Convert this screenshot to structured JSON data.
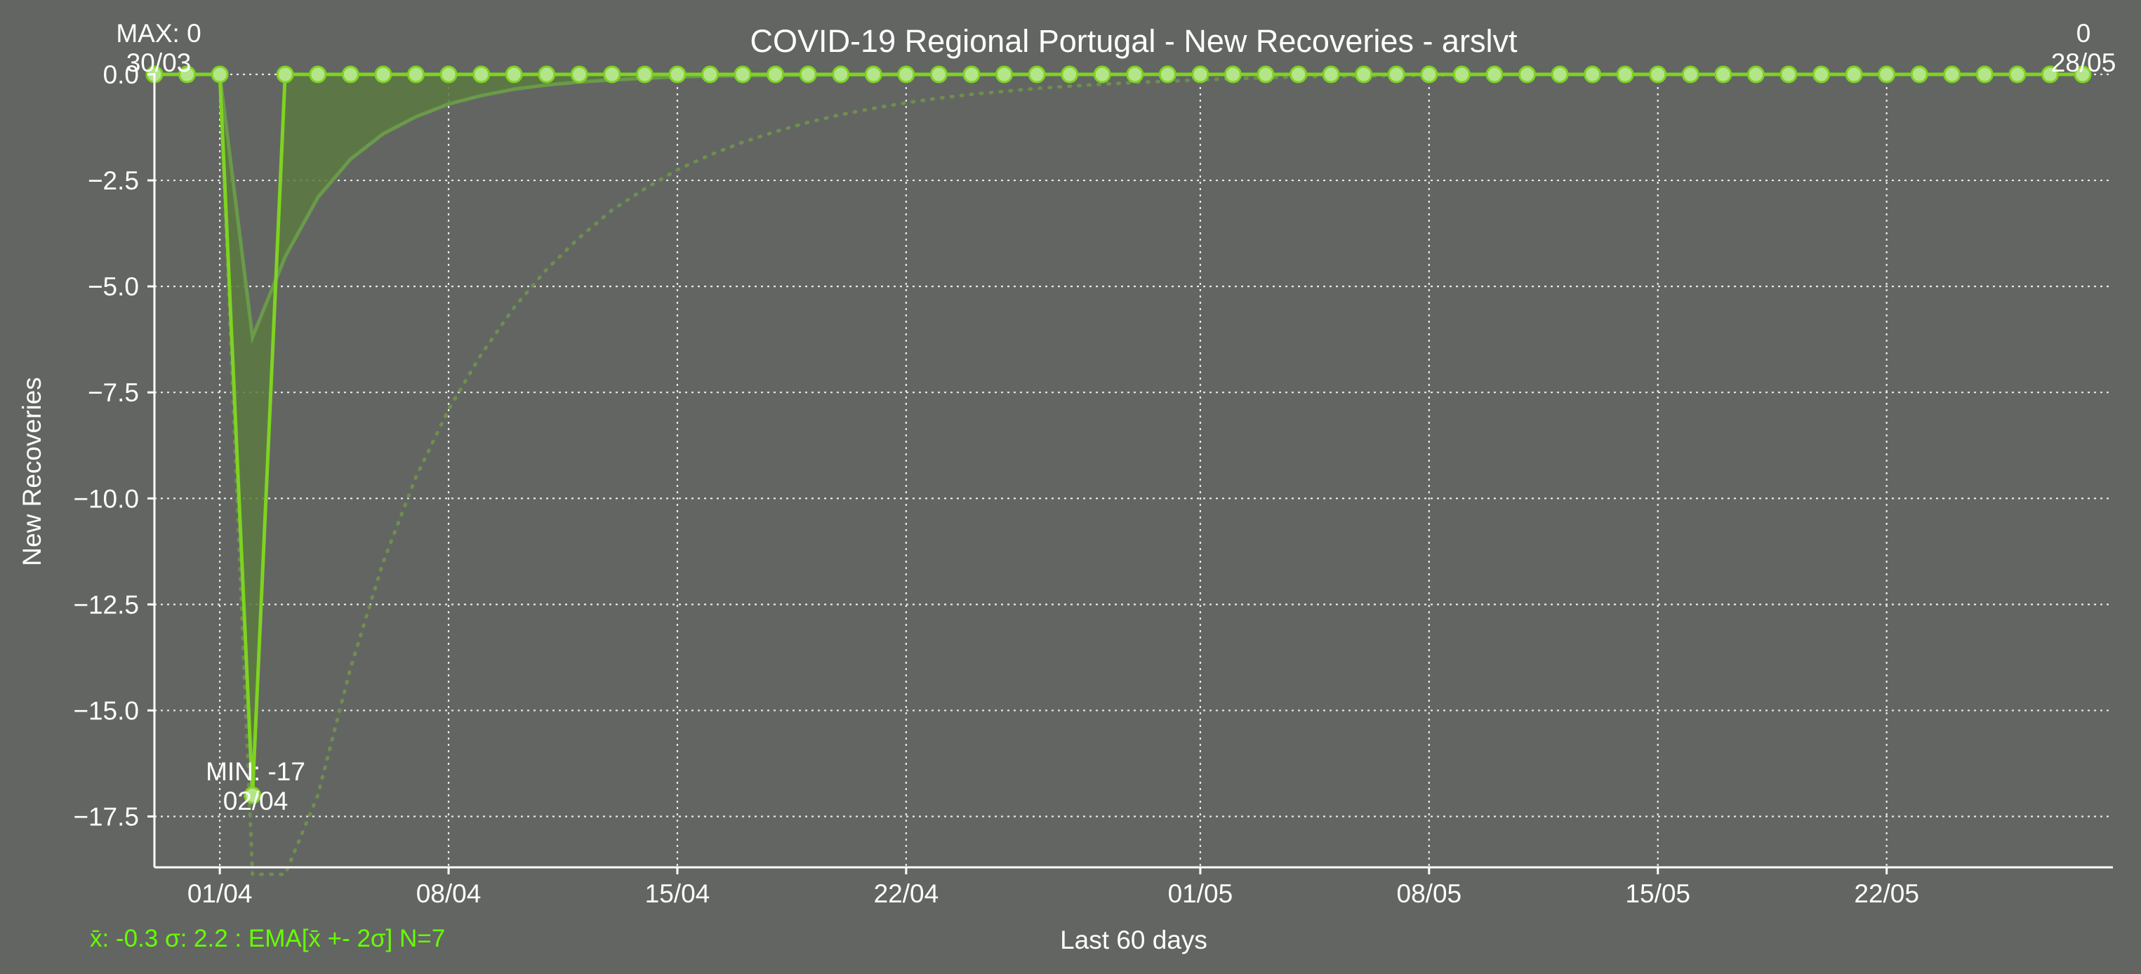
{
  "colors": {
    "background": "#636563",
    "axis": "#ffffff",
    "text": "#ffffff",
    "grid": "#e8e8e8",
    "series": "#7ed321",
    "ema": "#6a9a4a",
    "band": "#6e8f4e",
    "fill": "#5b7a40",
    "stats": "#66ff00"
  },
  "chart_data": {
    "type": "line",
    "title": "COVID-19 Regional Portugal - New Recoveries - arslvt",
    "xlabel": "Last 60 days",
    "ylabel": "New Recoveries",
    "ylim": [
      -18.7,
      0
    ],
    "yticks": [
      0.0,
      -2.5,
      -5.0,
      -7.5,
      -10.0,
      -12.5,
      -15.0,
      -17.5
    ],
    "ytick_labels": [
      "0.0",
      "−2.5",
      "−5.0",
      "−7.5",
      "−10.0",
      "−12.5",
      "−15.0",
      "−17.5"
    ],
    "start_date": "30/03",
    "xticks": [
      {
        "label": "01/04",
        "day": 2
      },
      {
        "label": "08/04",
        "day": 9
      },
      {
        "label": "15/04",
        "day": 16
      },
      {
        "label": "22/04",
        "day": 23
      },
      {
        "label": "01/05",
        "day": 32
      },
      {
        "label": "08/05",
        "day": 39
      },
      {
        "label": "15/05",
        "day": 46
      },
      {
        "label": "22/05",
        "day": 53
      }
    ],
    "grid": true,
    "series": [
      {
        "name": "New Recoveries",
        "values": [
          0,
          0,
          0,
          -17,
          0,
          0,
          0,
          0,
          0,
          0,
          0,
          0,
          0,
          0,
          0,
          0,
          0,
          0,
          0,
          0,
          0,
          0,
          0,
          0,
          0,
          0,
          0,
          0,
          0,
          0,
          0,
          0,
          0,
          0,
          0,
          0,
          0,
          0,
          0,
          0,
          0,
          0,
          0,
          0,
          0,
          0,
          0,
          0,
          0,
          0,
          0,
          0,
          0,
          0,
          0,
          0,
          0,
          0,
          0,
          0
        ]
      }
    ],
    "ema": [
      0,
      0,
      0,
      -6.2,
      -4.3,
      -2.9,
      -2.0,
      -1.4,
      -1.0,
      -0.7,
      -0.5,
      -0.35,
      -0.25,
      -0.18,
      -0.13,
      -0.09,
      -0.06,
      -0.04,
      -0.03,
      -0.02,
      -0.015,
      -0.01,
      -0.007,
      -0.005,
      -0.003,
      -0.002,
      -0.0015,
      -0.001,
      -0.0007,
      -0.0005,
      -0.0003,
      -0.0002,
      -0.0001,
      0,
      0,
      0,
      0,
      0,
      0,
      0,
      0,
      0,
      0,
      0,
      0,
      0,
      0,
      0,
      0,
      0,
      0,
      0,
      0,
      0,
      0,
      0,
      0,
      0,
      0,
      0
    ],
    "band_lower": [
      0,
      0,
      0,
      -20,
      -21,
      -17,
      -14,
      -11.5,
      -9.5,
      -7.9,
      -6.6,
      -5.5,
      -4.6,
      -3.85,
      -3.2,
      -2.7,
      -2.25,
      -1.9,
      -1.6,
      -1.35,
      -1.13,
      -0.95,
      -0.8,
      -0.67,
      -0.56,
      -0.47,
      -0.4,
      -0.33,
      -0.28,
      -0.23,
      -0.19,
      -0.16,
      -0.13,
      -0.1,
      -0.08,
      -0.06,
      -0.05,
      -0.04,
      -0.03,
      -0.02,
      -0.01,
      0,
      0,
      0,
      0,
      0,
      0,
      0,
      0,
      0,
      0,
      0,
      0,
      0,
      0,
      0,
      0,
      0,
      0,
      0
    ],
    "annotations": {
      "max_label": "MAX: 0",
      "max_date": "30/03",
      "min_label": "MIN: -17",
      "min_date": "02/04",
      "last_value": "0",
      "last_date": "28/05"
    },
    "stats_text": "x̄: -0.3 σ: 2.2 : EMA[x̄ +- 2σ] N=7"
  }
}
